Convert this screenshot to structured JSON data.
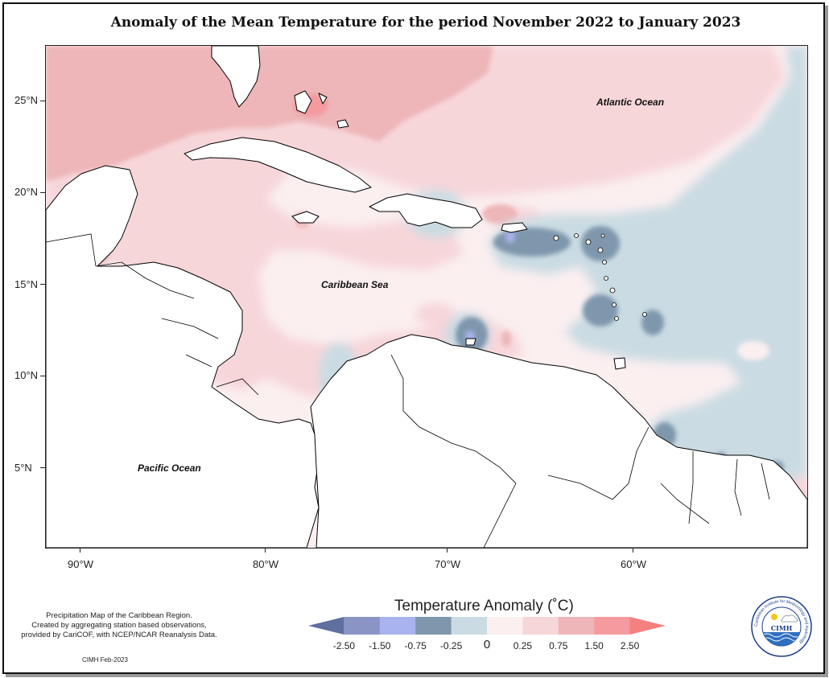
{
  "title": "Anomaly of the Mean Temperature for the period November 2022 to January 2023",
  "map": {
    "y_ticks": [
      "25°N",
      "20°N",
      "15°N",
      "10°N",
      "5°N"
    ],
    "x_ticks": [
      "90°W",
      "80°W",
      "70°W",
      "60°W"
    ],
    "labels": {
      "atlantic": "Atlantic Ocean",
      "caribbean": "Caribbean Sea",
      "pacific": "Pacific Ocean"
    }
  },
  "legend": {
    "title": "Temperature Anomaly (˚C)",
    "ticks": [
      "-2.50",
      "-1.50",
      "-0.75",
      "-0.25",
      "0",
      "0.25",
      "0.75",
      "1.50",
      "2.50"
    ],
    "colors": [
      "#5f6fa0",
      "#8a95c6",
      "#a9b3ee",
      "#7f97ad",
      "#cadbe3",
      "#fbeff0",
      "#f7d6da",
      "#eeb6b8",
      "#f59a9e",
      "#f58080"
    ]
  },
  "note": {
    "line1": "Precipitation Map of the Caribbean Region.",
    "line2": "Created by aggregating station based observations,",
    "line3": "provided by CariCOF, with NCEP/NCAR Reanalysis Data."
  },
  "credit": "CIMH Feb-2023",
  "logo": {
    "ring_text": "Caribbean Institute for Meteorology and Hydrology",
    "acronym": "CIMH"
  }
}
